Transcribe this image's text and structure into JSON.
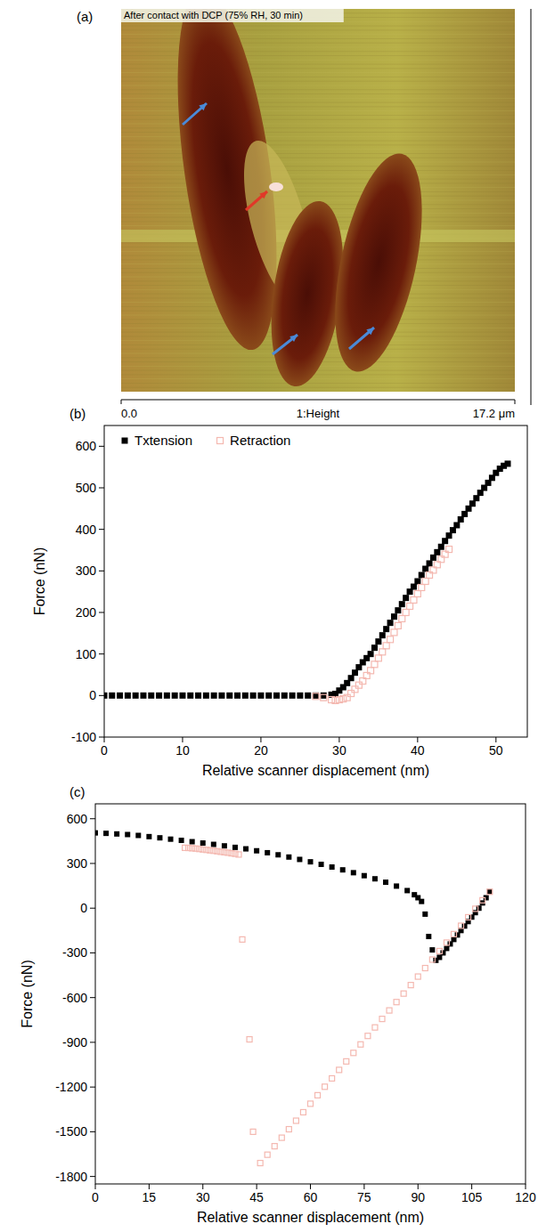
{
  "chart_data": [
    {
      "type": "image",
      "panel_label": "(a)",
      "title": "After contact with DCP (75% RH, 30 min)",
      "xlabel": "1:Height",
      "xlim": [
        0,
        17.2
      ],
      "xticks": [
        {
          "value": 0,
          "label": "0.0"
        },
        {
          "value": 17.2,
          "label": "17.2 μm"
        }
      ]
    },
    {
      "type": "scatter",
      "panel_label": "(b)",
      "xlabel": "Relative scanner displacement (nm)",
      "ylabel": "Force (nN)",
      "xlim": [
        0,
        54
      ],
      "xticks": [
        0,
        10,
        20,
        30,
        40,
        50
      ],
      "ylim": [
        -100,
        650
      ],
      "yticks": [
        -100,
        0,
        100,
        200,
        300,
        400,
        500,
        600
      ],
      "legend": "upper left",
      "series": [
        {
          "name": "Txtension",
          "color": "#000000",
          "marker": "square",
          "x": [
            0,
            1,
            2,
            3,
            4,
            5,
            6,
            7,
            8,
            9,
            10,
            11,
            12,
            13,
            14,
            15,
            16,
            17,
            18,
            19,
            20,
            21,
            22,
            23,
            24,
            25,
            26,
            27,
            28,
            29,
            29.5,
            30,
            30.5,
            31,
            31.5,
            32,
            32.5,
            33,
            33.5,
            34,
            34.5,
            35,
            35.5,
            36,
            36.5,
            37,
            37.5,
            38,
            38.5,
            39,
            39.5,
            40,
            40.5,
            41,
            41.5,
            42,
            42.5,
            43,
            43.5,
            44,
            44.5,
            45,
            45.5,
            46,
            46.5,
            47,
            47.5,
            48,
            48.5,
            49,
            49.5,
            50,
            50.5,
            51,
            51.5
          ],
          "values": [
            0,
            0,
            0,
            0,
            0,
            0,
            0,
            0,
            0,
            0,
            0,
            0,
            0,
            0,
            0,
            0,
            0,
            0,
            0,
            0,
            0,
            0,
            0,
            0,
            0,
            0,
            0,
            0,
            0,
            2,
            4,
            12,
            20,
            30,
            42,
            55,
            68,
            80,
            90,
            100,
            115,
            130,
            145,
            160,
            175,
            190,
            205,
            220,
            235,
            250,
            262,
            275,
            290,
            305,
            318,
            332,
            345,
            358,
            372,
            385,
            398,
            410,
            424,
            437,
            450,
            462,
            475,
            488,
            500,
            512,
            524,
            536,
            546,
            553,
            558
          ]
        },
        {
          "name": "Retraction",
          "color": "#f4b8b0",
          "marker": "open-square",
          "x": [
            27,
            28,
            29,
            29.5,
            30,
            30.5,
            31,
            31.5,
            32,
            32.5,
            33,
            33.5,
            34,
            34.5,
            35,
            35.5,
            36,
            36.5,
            37,
            37.5,
            38,
            38.5,
            39,
            39.5,
            40,
            40.5,
            41,
            41.5,
            42,
            42.5,
            43,
            43.5,
            44
          ],
          "values": [
            -2,
            -5,
            -10,
            -12,
            -10,
            -8,
            -5,
            5,
            15,
            25,
            35,
            48,
            60,
            75,
            90,
            105,
            120,
            135,
            152,
            168,
            185,
            200,
            215,
            230,
            245,
            260,
            275,
            290,
            302,
            315,
            328,
            340,
            352
          ]
        }
      ]
    },
    {
      "type": "scatter",
      "panel_label": "(c)",
      "xlabel": "Relative scanner displacement (nm)",
      "ylabel": "Force (nN)",
      "xlim": [
        0,
        120
      ],
      "xticks": [
        0,
        15,
        30,
        45,
        60,
        75,
        90,
        105,
        120
      ],
      "ylim": [
        -1850,
        700
      ],
      "yticks": [
        -1800,
        -1500,
        -1200,
        -900,
        -600,
        -300,
        0,
        300,
        600
      ],
      "series": [
        {
          "color": "#000000",
          "marker": "square",
          "x": [
            0,
            3,
            6,
            9,
            12,
            15,
            18,
            21,
            24,
            27,
            30,
            33,
            36,
            39,
            42,
            45,
            48,
            51,
            54,
            57,
            60,
            63,
            66,
            69,
            72,
            75,
            78,
            81,
            84,
            87,
            89,
            90,
            91,
            92,
            93,
            94,
            95,
            96,
            97,
            98,
            99,
            100,
            101,
            102,
            103,
            104,
            105,
            106,
            107,
            108,
            109,
            110
          ],
          "values": [
            505,
            502,
            498,
            494,
            488,
            480,
            472,
            463,
            455,
            446,
            437,
            428,
            418,
            408,
            398,
            385,
            372,
            358,
            343,
            327,
            311,
            294,
            276,
            257,
            238,
            218,
            197,
            174,
            148,
            118,
            90,
            70,
            45,
            -40,
            -190,
            -280,
            -350,
            -330,
            -300,
            -270,
            -240,
            -210,
            -180,
            -150,
            -120,
            -90,
            -60,
            -30,
            0,
            35,
            70,
            110
          ]
        },
        {
          "color": "#f4b8b0",
          "marker": "open-square",
          "x": [
            110,
            108,
            106,
            104,
            102,
            100,
            98,
            96,
            94,
            92,
            90,
            88,
            86,
            84,
            82,
            80,
            78,
            76,
            74,
            72,
            70,
            68,
            66,
            64,
            62,
            60,
            58,
            56,
            54,
            52,
            50,
            48,
            46,
            44,
            43,
            41,
            40,
            39,
            38,
            37,
            36,
            35,
            34,
            33,
            32,
            31,
            30,
            29,
            28,
            27,
            26,
            25
          ],
          "values": [
            110,
            53,
            -4,
            -61,
            -118,
            -174,
            -231,
            -288,
            -345,
            -402,
            -459,
            -516,
            -573,
            -630,
            -686,
            -743,
            -800,
            -857,
            -914,
            -971,
            -1028,
            -1085,
            -1142,
            -1198,
            -1255,
            -1312,
            -1369,
            -1426,
            -1483,
            -1540,
            -1597,
            -1654,
            -1710,
            -1500,
            -880,
            -210,
            360,
            365,
            368,
            372,
            375,
            378,
            382,
            385,
            388,
            391,
            394,
            397,
            400,
            402,
            404,
            405
          ]
        }
      ]
    }
  ]
}
